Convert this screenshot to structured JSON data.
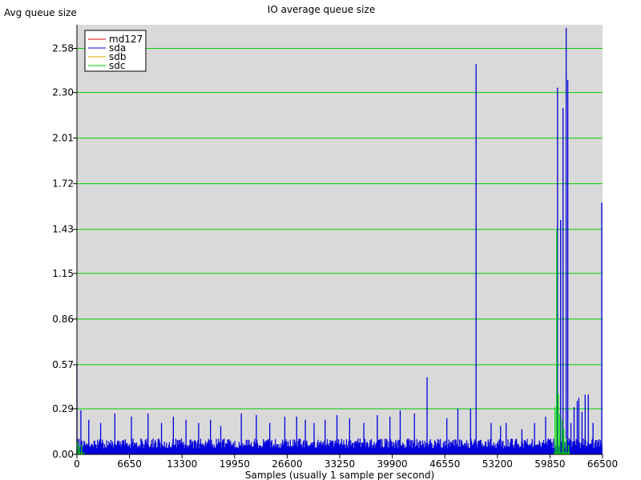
{
  "chart_data": {
    "type": "line",
    "title": "IO average queue size",
    "ylabel": "Avg queue size",
    "xlabel": "Samples (usually 1 sample per second)",
    "xlim": [
      0,
      66500
    ],
    "ylim": [
      0,
      2.73
    ],
    "x_ticks": [
      0,
      6650,
      13300,
      19950,
      26600,
      33250,
      39900,
      46550,
      53200,
      59850,
      66500
    ],
    "y_ticks": [
      "0.00",
      "0.29",
      "0.57",
      "0.86",
      "1.15",
      "1.43",
      "1.72",
      "2.01",
      "2.30",
      "2.58"
    ],
    "grid": "horizontal",
    "legend_position": "top-left",
    "background": "#d9d9d9",
    "grid_color": "#00cc00",
    "series": [
      {
        "name": "md127",
        "color": "#dd0000",
        "points": []
      },
      {
        "name": "sda",
        "color": "#0000dd",
        "baseline": 0.07,
        "points": [
          [
            0,
            0.57
          ],
          [
            500,
            0.28
          ],
          [
            1500,
            0.22
          ],
          [
            3000,
            0.2
          ],
          [
            4800,
            0.26
          ],
          [
            6900,
            0.24
          ],
          [
            9000,
            0.26
          ],
          [
            10700,
            0.2
          ],
          [
            12200,
            0.24
          ],
          [
            13800,
            0.22
          ],
          [
            15400,
            0.2
          ],
          [
            16900,
            0.22
          ],
          [
            18200,
            0.18
          ],
          [
            20800,
            0.26
          ],
          [
            22700,
            0.25
          ],
          [
            24400,
            0.2
          ],
          [
            26300,
            0.24
          ],
          [
            27800,
            0.24
          ],
          [
            28900,
            0.22
          ],
          [
            30000,
            0.2
          ],
          [
            31400,
            0.22
          ],
          [
            32900,
            0.25
          ],
          [
            34500,
            0.23
          ],
          [
            36300,
            0.2
          ],
          [
            38000,
            0.25
          ],
          [
            39600,
            0.24
          ],
          [
            40900,
            0.28
          ],
          [
            42700,
            0.26
          ],
          [
            44300,
            0.49
          ],
          [
            46800,
            0.23
          ],
          [
            48200,
            0.29
          ],
          [
            49800,
            0.29
          ],
          [
            50500,
            2.48
          ],
          [
            52400,
            0.2
          ],
          [
            53600,
            0.18
          ],
          [
            54300,
            0.2
          ],
          [
            56300,
            0.16
          ],
          [
            57900,
            0.2
          ],
          [
            59300,
            0.24
          ],
          [
            60800,
            2.33
          ],
          [
            61200,
            1.49
          ],
          [
            61500,
            2.2
          ],
          [
            61900,
            2.71
          ],
          [
            62100,
            2.38
          ],
          [
            62500,
            0.2
          ],
          [
            62900,
            0.3
          ],
          [
            63300,
            0.34
          ],
          [
            63500,
            0.36
          ],
          [
            63900,
            0.27
          ],
          [
            64300,
            0.38
          ],
          [
            64700,
            0.38
          ],
          [
            65300,
            0.2
          ],
          [
            66400,
            1.6
          ]
        ]
      },
      {
        "name": "sdb",
        "color": "#ddaa00",
        "points": []
      },
      {
        "name": "sdc",
        "color": "#00dd00",
        "baseline": 0.01,
        "points": [
          [
            100,
            0.08
          ],
          [
            300,
            0.05
          ],
          [
            600,
            0.06
          ],
          [
            60500,
            0.3
          ],
          [
            60700,
            1.42
          ],
          [
            60900,
            0.38
          ],
          [
            61100,
            0.26
          ],
          [
            61400,
            0.22
          ],
          [
            61600,
            0.16
          ],
          [
            61900,
            0.1
          ],
          [
            62200,
            0.06
          ]
        ]
      }
    ]
  }
}
